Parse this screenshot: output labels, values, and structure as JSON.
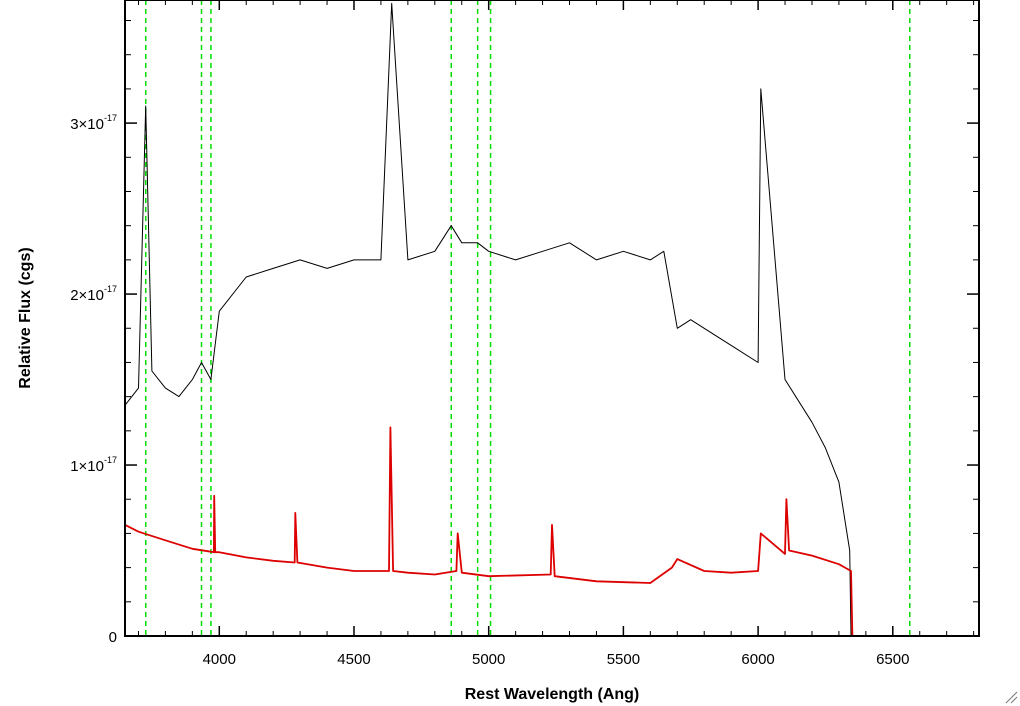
{
  "chart_data": {
    "type": "line",
    "xlabel": "Rest Wavelength (Ang)",
    "ylabel": "Relative Flux (cgs)",
    "xlim": [
      3650,
      6820
    ],
    "ylim": [
      0,
      3.72e-17
    ],
    "x_ticks": [
      4000,
      4500,
      5000,
      5500,
      6000,
      6500
    ],
    "x_tick_labels": [
      "4000",
      "4500",
      "5000",
      "5500",
      "6000",
      "6500"
    ],
    "y_ticks": [
      0,
      1e-17,
      2e-17,
      3e-17
    ],
    "y_tick_labels": [
      {
        "mantissa": "0",
        "exponent": ""
      },
      {
        "mantissa": "1×10",
        "exponent": "-17"
      },
      {
        "mantissa": "2×10",
        "exponent": "-17"
      },
      {
        "mantissa": "3×10",
        "exponent": "-17"
      }
    ],
    "reference_lines": {
      "style": "dashed",
      "color": "#00dd00",
      "x": [
        3727,
        3934,
        3969,
        4861,
        4959,
        5007,
        6563
      ]
    },
    "series": [
      {
        "color": "#000000",
        "description_of_trend": "noisy observed spectrum",
        "x": [
          3650,
          3700,
          3727,
          3750,
          3800,
          3850,
          3900,
          3934,
          3969,
          4000,
          4100,
          4200,
          4300,
          4400,
          4500,
          4600,
          4640,
          4700,
          4800,
          4861,
          4900,
          4959,
          5000,
          5100,
          5200,
          5300,
          5400,
          5500,
          5600,
          5650,
          5700,
          5750,
          5800,
          5900,
          6000,
          6010,
          6100,
          6200,
          6250,
          6300,
          6340,
          6345
        ],
        "y": [
          1.35e-17,
          1.45e-17,
          3.1e-17,
          1.55e-17,
          1.45e-17,
          1.4e-17,
          1.5e-17,
          1.6e-17,
          1.5e-17,
          1.9e-17,
          2.1e-17,
          2.15e-17,
          2.2e-17,
          2.15e-17,
          2.2e-17,
          2.2e-17,
          3.7e-17,
          2.2e-17,
          2.25e-17,
          2.4e-17,
          2.3e-17,
          2.3e-17,
          2.25e-17,
          2.2e-17,
          2.25e-17,
          2.3e-17,
          2.2e-17,
          2.25e-17,
          2.2e-17,
          2.25e-17,
          1.8e-17,
          1.85e-17,
          1.8e-17,
          1.7e-17,
          1.6e-17,
          3.2e-17,
          1.5e-17,
          1.25e-17,
          1.1e-17,
          9e-18,
          5e-18,
          0.0
        ]
      },
      {
        "color": "#dd0000",
        "description_of_trend": "smooth model spectrum with emission lines",
        "x": [
          3650,
          3700,
          3800,
          3900,
          3980,
          3981,
          3985,
          4000,
          4100,
          4200,
          4280,
          4282,
          4290,
          4400,
          4500,
          4630,
          4635,
          4645,
          4700,
          4800,
          4880,
          4885,
          4900,
          5000,
          5230,
          5235,
          5245,
          5400,
          5600,
          5680,
          5700,
          5800,
          5900,
          6000,
          6010,
          6100,
          6105,
          6115,
          6200,
          6300,
          6345,
          6350,
          6820
        ],
        "y": [
          6.5e-18,
          6.1e-18,
          5.6e-18,
          5.1e-18,
          4.9e-18,
          8.2e-18,
          4.9e-18,
          4.9e-18,
          4.6e-18,
          4.4e-18,
          4.3e-18,
          7.2e-18,
          4.3e-18,
          4e-18,
          3.8e-18,
          3.8e-18,
          1.22e-17,
          3.8e-18,
          3.7e-18,
          3.6e-18,
          3.8e-18,
          6e-18,
          3.7e-18,
          3.5e-18,
          3.6e-18,
          6.5e-18,
          3.5e-18,
          3.2e-18,
          3.1e-18,
          4e-18,
          4.5e-18,
          3.8e-18,
          3.7e-18,
          3.8e-18,
          6e-18,
          4.8e-18,
          8e-18,
          5e-18,
          4.7e-18,
          4.2e-18,
          3.8e-18,
          0.0,
          0.0
        ]
      }
    ]
  }
}
